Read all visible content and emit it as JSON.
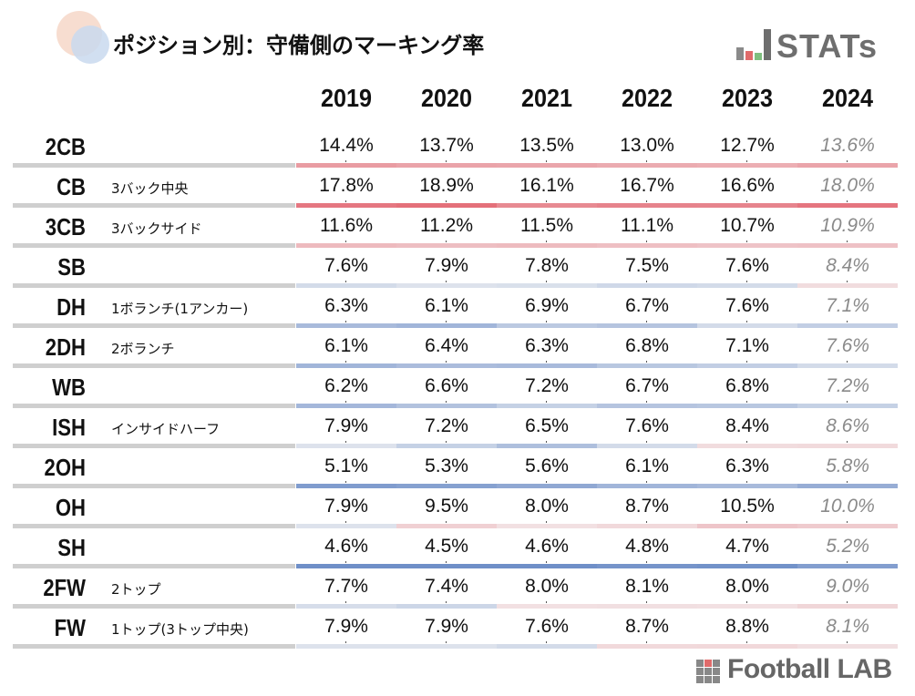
{
  "header": {
    "title": "ポジション別：守備側のマーキング率",
    "logo_text": "STATs",
    "footer_logo_text": "Football LAB"
  },
  "colors": {
    "high": "#e4707a",
    "low": "#6f8fc8",
    "neutral": "#f4f4f4",
    "baseline": "#cfcfcf",
    "last_year_text": "#8a8a8a"
  },
  "chart_data": {
    "type": "table",
    "title": "ポジション別：守備側のマーキング率",
    "columns": [
      "2019",
      "2020",
      "2021",
      "2022",
      "2023",
      "2024"
    ],
    "unit": "%",
    "rows": [
      {
        "position": "2CB",
        "description": "",
        "values": [
          "14.4%",
          "13.7%",
          "13.5%",
          "13.0%",
          "12.7%",
          "13.6%"
        ]
      },
      {
        "position": "CB",
        "description": "3バック中央",
        "values": [
          "17.8%",
          "18.9%",
          "16.1%",
          "16.7%",
          "16.6%",
          "18.0%"
        ]
      },
      {
        "position": "3CB",
        "description": "3バックサイド",
        "values": [
          "11.6%",
          "11.2%",
          "11.5%",
          "11.1%",
          "10.7%",
          "10.9%"
        ]
      },
      {
        "position": "SB",
        "description": "",
        "values": [
          "7.6%",
          "7.9%",
          "7.8%",
          "7.5%",
          "7.6%",
          "8.4%"
        ]
      },
      {
        "position": "DH",
        "description": "1ボランチ(1アンカー)",
        "values": [
          "6.3%",
          "6.1%",
          "6.9%",
          "6.7%",
          "7.6%",
          "7.1%"
        ]
      },
      {
        "position": "2DH",
        "description": "2ボランチ",
        "values": [
          "6.1%",
          "6.4%",
          "6.3%",
          "6.8%",
          "7.1%",
          "7.6%"
        ]
      },
      {
        "position": "WB",
        "description": "",
        "values": [
          "6.2%",
          "6.6%",
          "7.2%",
          "6.7%",
          "6.8%",
          "7.2%"
        ]
      },
      {
        "position": "ISH",
        "description": "インサイドハーフ",
        "values": [
          "7.9%",
          "7.2%",
          "6.5%",
          "7.6%",
          "8.4%",
          "8.6%"
        ]
      },
      {
        "position": "2OH",
        "description": "",
        "values": [
          "5.1%",
          "5.3%",
          "5.6%",
          "6.1%",
          "6.3%",
          "5.8%"
        ]
      },
      {
        "position": "OH",
        "description": "",
        "values": [
          "7.9%",
          "9.5%",
          "8.0%",
          "8.7%",
          "10.5%",
          "10.0%"
        ]
      },
      {
        "position": "SH",
        "description": "",
        "values": [
          "4.6%",
          "4.5%",
          "4.6%",
          "4.8%",
          "4.7%",
          "5.2%"
        ]
      },
      {
        "position": "2FW",
        "description": "2トップ",
        "values": [
          "7.7%",
          "7.4%",
          "8.0%",
          "8.1%",
          "8.0%",
          "9.0%"
        ]
      },
      {
        "position": "FW",
        "description": "1トップ(3トップ中央)",
        "values": [
          "7.9%",
          "7.9%",
          "7.6%",
          "8.7%",
          "8.8%",
          "8.1%"
        ]
      }
    ]
  }
}
